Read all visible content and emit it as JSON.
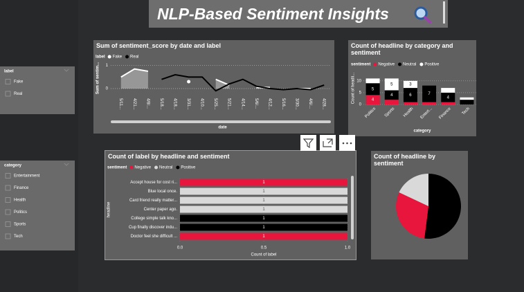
{
  "header": {
    "title": "NLP-Based Sentiment Insights"
  },
  "slicers": [
    {
      "title": "label",
      "items": [
        "Fake",
        "Real"
      ]
    },
    {
      "title": "category",
      "items": [
        "Entertainment",
        "Finance",
        "Health",
        "Politics",
        "Sports",
        "Tech"
      ]
    }
  ],
  "chart_data": [
    {
      "type": "line",
      "title": "Sum of sentiment_score by date and label",
      "legend_title": "label",
      "x_label": "date",
      "y_label": "Sum of sentim...",
      "categories": [
        "5/11...",
        "4/21...",
        "4/8/...",
        "5/18...",
        "4/18...",
        "3/31...",
        "4/10...",
        "5/25...",
        "5/21...",
        "4/14...",
        "5/6/...",
        "4/12...",
        "5/16...",
        "3/30...",
        "4/6/...",
        "4/28..."
      ],
      "series": [
        {
          "name": "Fake",
          "color": "#ffffff",
          "values": [
            0.5,
            0.85,
            0.75,
            null,
            null,
            0.3,
            null,
            0.4,
            0.15,
            null,
            0.05,
            0.05,
            null,
            0,
            0,
            null
          ]
        },
        {
          "name": "Real",
          "color": "#000000",
          "values": [
            null,
            null,
            null,
            0.4,
            0.6,
            0.5,
            0.5,
            -0.1,
            0.2,
            0.4,
            0.1,
            0,
            -0.05,
            0,
            -0.05,
            0.15
          ]
        }
      ],
      "ylim": [
        -0.3,
        1.2
      ],
      "yticks": [
        0,
        1
      ],
      "grid": true
    },
    {
      "type": "stacked_bar",
      "title": "Count of headline by category and sentiment",
      "legend_title": "sentiment",
      "x_label": "category",
      "y_label": "Count of headli...",
      "categories": [
        "Politics",
        "Sports",
        "Health",
        "Entert...",
        "Finance",
        "Tech"
      ],
      "series": [
        {
          "name": "Negative",
          "color": "#e8163c",
          "values": [
            4,
            2,
            1,
            1,
            1,
            0
          ]
        },
        {
          "name": "Neutral",
          "color": "#000000",
          "values": [
            5,
            4,
            6,
            7,
            4,
            2
          ]
        },
        {
          "name": "Positive",
          "color": "#ffffff",
          "values": [
            2,
            5,
            3,
            0,
            2,
            1
          ]
        }
      ],
      "ylim": [
        0,
        12
      ],
      "yticks": [
        0,
        5,
        10
      ],
      "grid": true
    },
    {
      "type": "hbar",
      "title": "Count of label by headline and sentiment",
      "legend_title": "sentiment",
      "x_label": "Count of label",
      "y_label": "headline",
      "categories": [
        "Accept house for cost ri...",
        "Blue local once.",
        "Card friend really matter...",
        "Center paper ago.",
        "College simple talk kno...",
        "Cup finally discover indu...",
        "Doctor feel she difficult ..."
      ],
      "series": [
        {
          "name": "Negative",
          "color": "#e8163c",
          "values": [
            1,
            null,
            null,
            null,
            null,
            null,
            1
          ]
        },
        {
          "name": "Neutral",
          "color": "#d9d9d9",
          "values": [
            null,
            1,
            1,
            1,
            null,
            null,
            null
          ]
        },
        {
          "name": "Positive",
          "color": "#000000",
          "values": [
            null,
            null,
            null,
            null,
            1,
            1,
            null
          ]
        }
      ],
      "xlim": [
        0,
        1
      ],
      "xticks": [
        {
          "value": 0,
          "label": "0.0"
        },
        {
          "value": 0.5,
          "label": "0.5"
        },
        {
          "value": 1,
          "label": "1.0"
        }
      ],
      "grid": true
    },
    {
      "type": "pie",
      "title": "Count of headline by sentiment",
      "values": [
        26,
        15,
        9
      ],
      "colors": [
        "#000000",
        "#e8163c",
        "#d9d9d9"
      ]
    }
  ]
}
